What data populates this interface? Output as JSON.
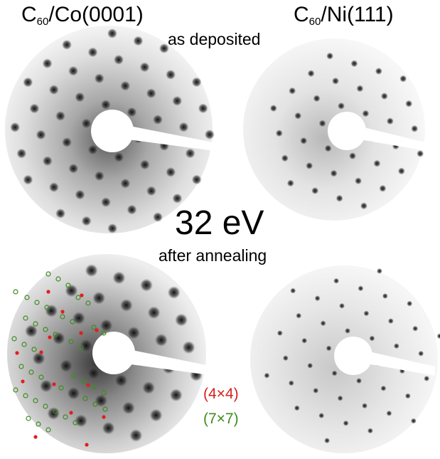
{
  "labels": {
    "left_title_main": "C",
    "left_title_sub": "60",
    "left_title_rest": "/Co(0001)",
    "right_title_main": "C",
    "right_title_sub": "60",
    "right_title_rest": "/Ni(111)",
    "top_subtitle": "as deposited",
    "energy": "32 eV",
    "bottom_subtitle": "after annealing",
    "legend_red": "(4×4)",
    "legend_green": "(7×7)"
  },
  "colors": {
    "red_marker": "#e0201c",
    "green_marker": "#3f8b1f",
    "legend_red": "#d8201c",
    "legend_green": "#3f8b1f"
  }
}
